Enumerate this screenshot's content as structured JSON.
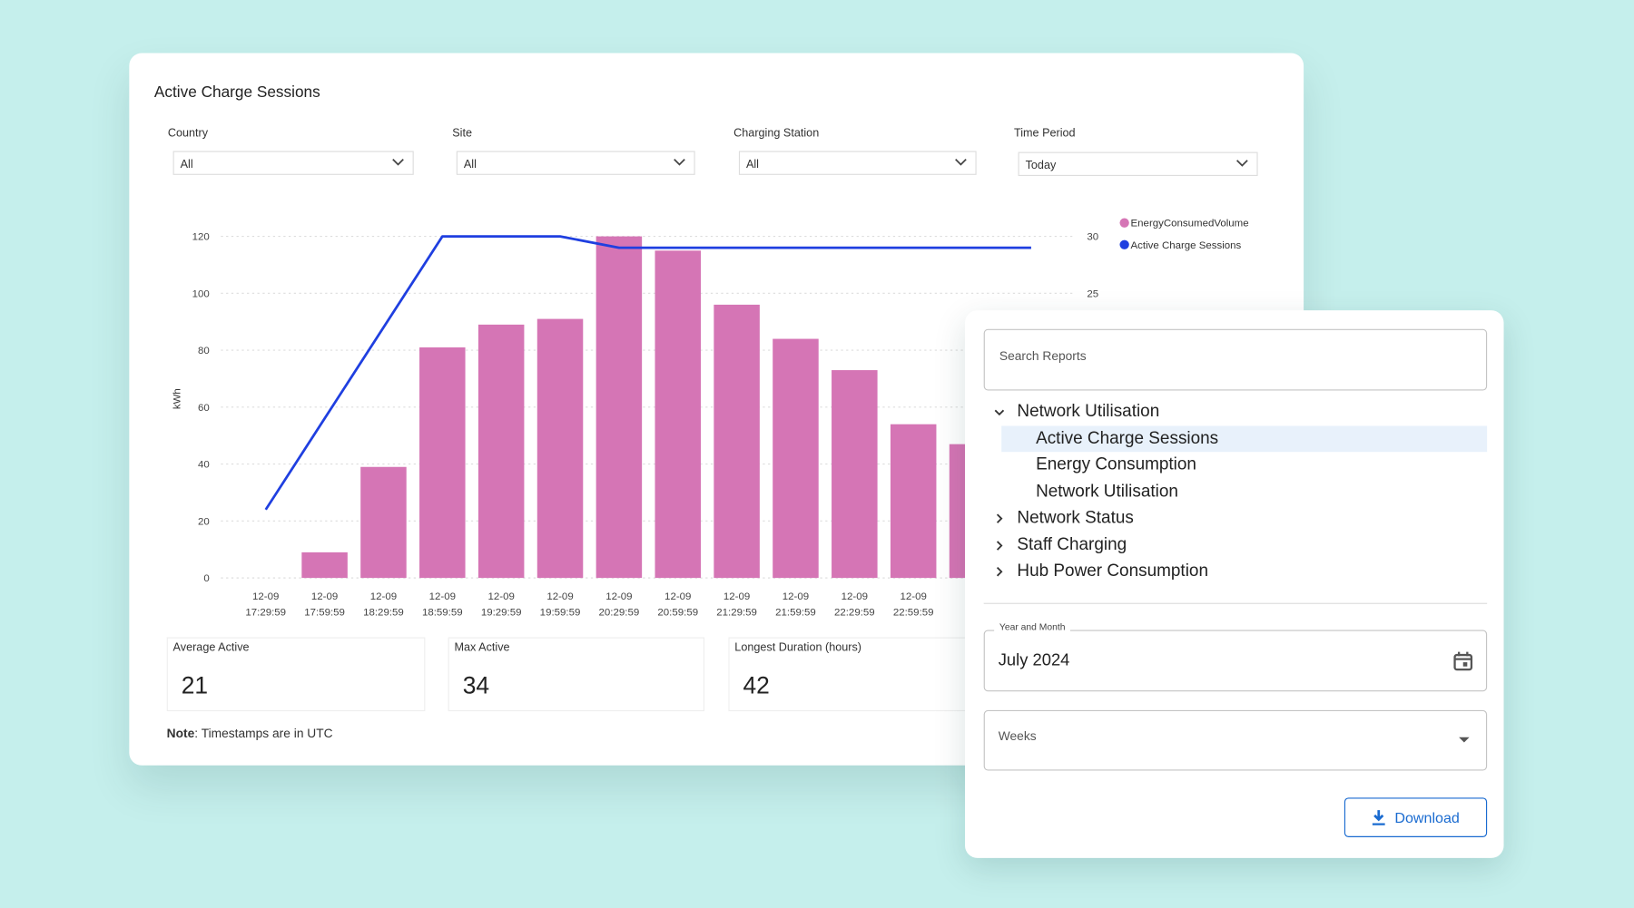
{
  "card": {
    "title": "Active Charge Sessions",
    "filters": [
      {
        "label": "Country",
        "value": "All"
      },
      {
        "label": "Site",
        "value": "All"
      },
      {
        "label": "Charging Station",
        "value": "All"
      },
      {
        "label": "Time Period",
        "value": "Today"
      }
    ],
    "stats": [
      {
        "label": "Average Active",
        "value": "21"
      },
      {
        "label": "Max Active",
        "value": "34"
      },
      {
        "label": "Longest Duration (hours)",
        "value": "42"
      }
    ],
    "note_label": "Note",
    "note_text": ": Timestamps are in UTC"
  },
  "chart_data": {
    "type": "combo",
    "y_label": "kWh",
    "categories": [
      "12-09 17:29:59",
      "12-09 17:59:59",
      "12-09 18:29:59",
      "12-09 18:59:59",
      "12-09 19:29:59",
      "12-09 19:59:59",
      "12-09 20:29:59",
      "12-09 20:59:59",
      "12-09 21:29:59",
      "12-09 21:59:59",
      "12-09 22:29:59",
      "12-09 22:59:59",
      null,
      null
    ],
    "series": [
      {
        "name": "EnergyConsumedVolume",
        "type": "bar",
        "color": "#d575b5",
        "values": [
          0,
          9,
          39,
          81,
          89,
          91,
          120,
          115,
          96,
          84,
          73,
          54,
          47,
          null
        ]
      },
      {
        "name": "Active Charge Sessions",
        "type": "line",
        "axis": "y2",
        "color": "#1f3fe0",
        "values": [
          6,
          14,
          22,
          30,
          30,
          30,
          29,
          29,
          29,
          29,
          29,
          29,
          29,
          29
        ]
      }
    ],
    "ylim": [
      0,
      120
    ],
    "yticks": [
      0,
      20,
      40,
      60,
      80,
      100,
      120
    ],
    "y2lim": [
      0,
      30
    ],
    "y2ticks": [
      25,
      30
    ],
    "grid": true,
    "legend": "top-right"
  },
  "panel": {
    "search_placeholder": "Search Reports",
    "tree": [
      {
        "label": "Network Utilisation",
        "expanded": true,
        "children": [
          {
            "label": "Active Charge Sessions",
            "selected": true
          },
          {
            "label": "Energy Consumption"
          },
          {
            "label": "Network Utilisation"
          }
        ]
      },
      {
        "label": "Network Status",
        "expanded": false
      },
      {
        "label": "Staff Charging",
        "expanded": false
      },
      {
        "label": "Hub Power Consumption",
        "expanded": false
      }
    ],
    "date_field": {
      "label": "Year and Month",
      "value": "July 2024"
    },
    "weeks_placeholder": "Weeks",
    "button": "Download"
  }
}
